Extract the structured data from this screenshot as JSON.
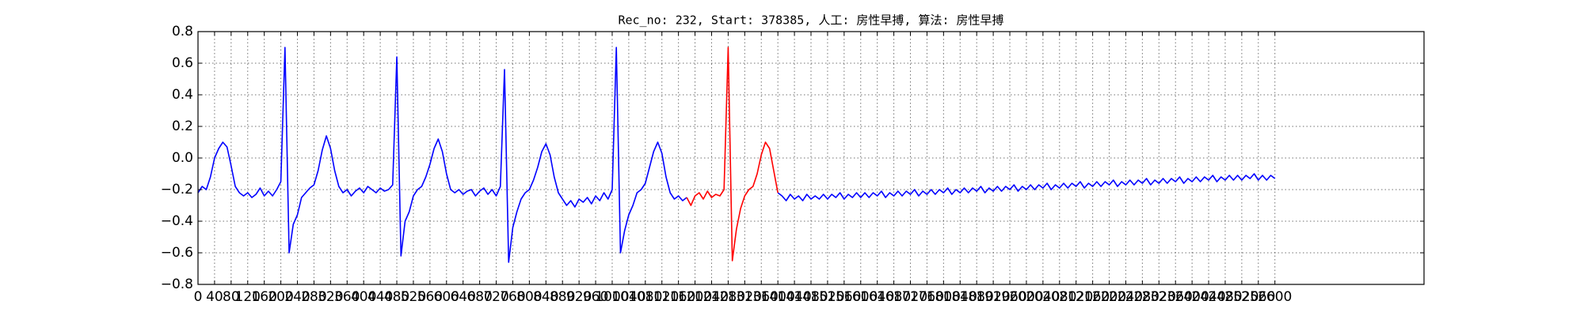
{
  "chart_data": {
    "type": "line",
    "title": "Rec_no: 232, Start: 378385, 人工: 房性早搏, 算法: 房性早搏",
    "xlim": [
      0,
      2960
    ],
    "ylim": [
      -0.8,
      0.8
    ],
    "grid": true,
    "yticks": [
      {
        "value": -0.8,
        "label": "−0.8"
      },
      {
        "value": -0.6,
        "label": "−0.6"
      },
      {
        "value": -0.4,
        "label": "−0.4"
      },
      {
        "value": -0.2,
        "label": "−0.2"
      },
      {
        "value": 0,
        "label": "0.0"
      },
      0.2,
      0.4,
      0.6,
      0.8
    ],
    "xticks": [
      0,
      40,
      80,
      120,
      160,
      200,
      240,
      280,
      320,
      360,
      400,
      440,
      480,
      520,
      560,
      600,
      640,
      680,
      720,
      760,
      800,
      840,
      880,
      920,
      960,
      1000,
      1040,
      1080,
      1120,
      1160,
      1200,
      1240,
      1280,
      1320,
      1360,
      1400,
      1440,
      1480,
      1520,
      1560,
      1600,
      1640,
      1680,
      1720,
      1760,
      1800,
      1840,
      1880,
      1920,
      1960,
      2000,
      2040,
      2080,
      2120,
      2160,
      2200,
      2240,
      2280,
      2320,
      2360,
      2400,
      2440,
      2480,
      2520,
      2560,
      2600
    ],
    "series": [
      {
        "color": "#0000ff",
        "x": [
          0,
          10,
          20,
          30,
          40,
          50,
          60,
          70,
          80,
          90,
          100,
          110,
          120,
          130,
          140,
          150,
          160,
          170,
          180,
          190,
          200,
          210,
          220,
          230,
          240,
          250,
          260,
          270,
          280,
          290,
          300,
          310,
          320,
          330,
          340,
          350,
          360,
          370,
          380,
          390,
          400,
          410,
          420,
          430,
          440,
          450,
          460,
          470,
          480,
          490,
          500,
          510,
          520,
          530,
          540,
          550,
          560,
          570,
          580,
          590,
          600,
          610,
          620,
          630,
          640,
          650,
          660,
          670,
          680,
          690,
          700,
          710,
          720,
          730,
          740,
          750,
          760,
          770,
          780,
          790,
          800,
          810,
          820,
          830,
          840,
          850,
          860,
          870,
          880,
          890,
          900,
          910,
          920,
          930,
          940,
          950,
          960,
          970,
          980,
          990,
          1000,
          1010,
          1020,
          1030,
          1040,
          1050,
          1060,
          1070,
          1080,
          1090,
          1100,
          1110,
          1120,
          1130,
          1140,
          1150,
          1160,
          1170,
          1180,
          1190,
          1200,
          1210,
          1220,
          1230,
          1240,
          1250,
          1260,
          1270,
          1280,
          1290,
          1300,
          1310,
          1320,
          1330,
          1340,
          1350,
          1360,
          1370,
          1380,
          1390,
          1400,
          1410,
          1420,
          1430,
          1440,
          1450,
          1460,
          1470,
          1480,
          1490,
          1500,
          1510,
          1520,
          1530,
          1540,
          1550,
          1560,
          1570,
          1580,
          1590,
          1600,
          1610,
          1620,
          1630,
          1640,
          1650,
          1660,
          1670,
          1680,
          1690,
          1700,
          1710,
          1720,
          1730,
          1740,
          1750,
          1760,
          1770,
          1780,
          1790,
          1800,
          1810,
          1820,
          1830,
          1840,
          1850,
          1860,
          1870,
          1880,
          1890,
          1900,
          1910,
          1920,
          1930,
          1940,
          1950,
          1960,
          1970,
          1980,
          1990,
          2000,
          2010,
          2020,
          2030,
          2040,
          2050,
          2060,
          2070,
          2080,
          2090,
          2100,
          2110,
          2120,
          2130,
          2140,
          2150,
          2160,
          2170,
          2180,
          2190,
          2200,
          2210,
          2220,
          2230,
          2240,
          2250,
          2260,
          2270,
          2280,
          2290,
          2300,
          2310,
          2320,
          2330,
          2340,
          2350,
          2360,
          2370,
          2380,
          2390,
          2400,
          2410,
          2420,
          2430,
          2440,
          2450,
          2460,
          2470,
          2480,
          2490,
          2500,
          2510,
          2520,
          2530,
          2540,
          2550,
          2560,
          2570,
          2580,
          2590,
          2600
        ],
        "values": [
          -0.22,
          -0.18,
          -0.2,
          -0.12,
          0.0,
          0.06,
          0.1,
          0.07,
          -0.05,
          -0.18,
          -0.22,
          -0.24,
          -0.22,
          -0.25,
          -0.23,
          -0.19,
          -0.24,
          -0.21,
          -0.24,
          -0.2,
          -0.15,
          0.7,
          -0.6,
          -0.42,
          -0.36,
          -0.25,
          -0.22,
          -0.19,
          -0.17,
          -0.08,
          0.05,
          0.14,
          0.06,
          -0.08,
          -0.18,
          -0.22,
          -0.2,
          -0.24,
          -0.21,
          -0.19,
          -0.22,
          -0.18,
          -0.2,
          -0.22,
          -0.19,
          -0.21,
          -0.2,
          -0.17,
          0.64,
          -0.62,
          -0.4,
          -0.34,
          -0.24,
          -0.2,
          -0.18,
          -0.12,
          -0.04,
          0.06,
          0.12,
          0.04,
          -0.1,
          -0.2,
          -0.22,
          -0.2,
          -0.23,
          -0.21,
          -0.2,
          -0.24,
          -0.21,
          -0.19,
          -0.23,
          -0.2,
          -0.24,
          -0.18,
          0.56,
          -0.66,
          -0.44,
          -0.34,
          -0.26,
          -0.22,
          -0.2,
          -0.14,
          -0.06,
          0.04,
          0.09,
          0.02,
          -0.12,
          -0.22,
          -0.26,
          -0.3,
          -0.27,
          -0.31,
          -0.26,
          -0.28,
          -0.25,
          -0.29,
          -0.24,
          -0.27,
          -0.22,
          -0.26,
          -0.2,
          0.7,
          -0.6,
          -0.46,
          -0.36,
          -0.3,
          -0.22,
          -0.2,
          -0.16,
          -0.06,
          0.04,
          0.1,
          0.03,
          -0.12,
          -0.22,
          -0.26,
          -0.24,
          -0.27,
          -0.25,
          null,
          null,
          null,
          null,
          null,
          null,
          null,
          null,
          null,
          null,
          null,
          null,
          null,
          null,
          null,
          null,
          null,
          null,
          null,
          null,
          null,
          -0.22,
          -0.24,
          -0.27,
          -0.23,
          -0.26,
          -0.24,
          -0.27,
          -0.23,
          -0.26,
          -0.24,
          -0.26,
          -0.23,
          -0.26,
          -0.23,
          -0.25,
          -0.22,
          -0.26,
          -0.23,
          -0.25,
          -0.22,
          -0.25,
          -0.22,
          -0.25,
          -0.22,
          -0.24,
          -0.21,
          -0.25,
          -0.22,
          -0.24,
          -0.21,
          -0.24,
          -0.21,
          -0.23,
          -0.2,
          -0.24,
          -0.21,
          -0.23,
          -0.2,
          -0.23,
          -0.2,
          -0.22,
          -0.19,
          -0.23,
          -0.2,
          -0.22,
          -0.19,
          -0.22,
          -0.19,
          -0.21,
          -0.18,
          -0.22,
          -0.19,
          -0.21,
          -0.18,
          -0.21,
          -0.18,
          -0.2,
          -0.17,
          -0.21,
          -0.18,
          -0.2,
          -0.17,
          -0.2,
          -0.17,
          -0.19,
          -0.16,
          -0.2,
          -0.17,
          -0.19,
          -0.16,
          -0.19,
          -0.16,
          -0.18,
          -0.15,
          -0.19,
          -0.16,
          -0.18,
          -0.15,
          -0.18,
          -0.15,
          -0.17,
          -0.14,
          -0.18,
          -0.15,
          -0.17,
          -0.14,
          -0.17,
          -0.14,
          -0.16,
          -0.13,
          -0.17,
          -0.14,
          -0.16,
          -0.13,
          -0.16,
          -0.13,
          -0.15,
          -0.12,
          -0.16,
          -0.13,
          -0.15,
          -0.12,
          -0.15,
          -0.12,
          -0.14,
          -0.11,
          -0.15,
          -0.12,
          -0.14,
          -0.11,
          -0.14,
          -0.11,
          -0.14,
          -0.11,
          -0.13,
          -0.1,
          -0.14,
          -0.11,
          -0.14,
          -0.11,
          -0.13
        ]
      },
      {
        "color": "#ff0000",
        "x": [
          1180,
          1190,
          1200,
          1210,
          1220,
          1230,
          1240,
          1250,
          1260,
          1270,
          1280,
          1290,
          1300,
          1310,
          1320,
          1330,
          1340,
          1350,
          1360,
          1370,
          1380,
          1390,
          1400
        ],
        "values": [
          -0.25,
          -0.3,
          -0.24,
          -0.22,
          -0.26,
          -0.21,
          -0.25,
          -0.23,
          -0.24,
          -0.2,
          0.7,
          -0.65,
          -0.45,
          -0.32,
          -0.24,
          -0.2,
          -0.18,
          -0.1,
          0.02,
          0.1,
          0.06,
          -0.08,
          -0.22
        ]
      }
    ]
  }
}
